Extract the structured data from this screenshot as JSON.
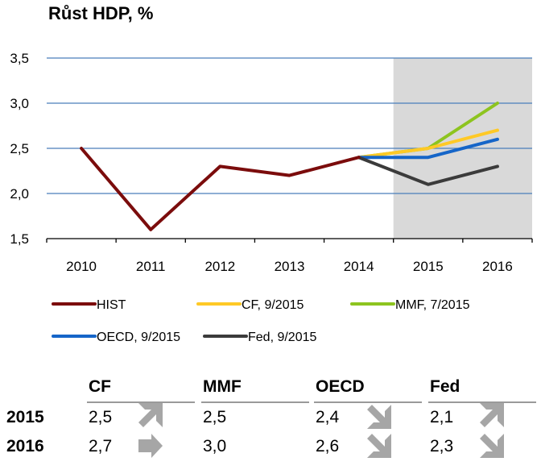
{
  "title": "Růst HDP, %",
  "chart_data": {
    "type": "line",
    "x": [
      "2010",
      "2011",
      "2012",
      "2013",
      "2014",
      "2015",
      "2016"
    ],
    "ylim": [
      1.5,
      3.5
    ],
    "yticks": [
      "1,5",
      "2,0",
      "2,5",
      "3,0",
      "3,5"
    ],
    "ytick_values": [
      1.5,
      2.0,
      2.5,
      3.0,
      3.5
    ],
    "grid": true,
    "forecast_region": [
      "2015",
      "2016"
    ],
    "legend_position": "bottom",
    "series": [
      {
        "name": "HIST",
        "color": "#7b0c0c",
        "x": [
          "2010",
          "2011",
          "2012",
          "2013",
          "2014"
        ],
        "values": [
          2.5,
          1.6,
          2.3,
          2.2,
          2.4
        ]
      },
      {
        "name": "CF, 9/2015",
        "color": "#ffc926",
        "x": [
          "2014",
          "2015",
          "2016"
        ],
        "values": [
          2.4,
          2.5,
          2.7
        ]
      },
      {
        "name": "MMF, 7/2015",
        "color": "#8dc41f",
        "x": [
          "2014",
          "2015",
          "2016"
        ],
        "values": [
          2.4,
          2.5,
          3.0
        ]
      },
      {
        "name": "OECD, 9/2015",
        "color": "#1565c8",
        "x": [
          "2014",
          "2015",
          "2016"
        ],
        "values": [
          2.4,
          2.4,
          2.6
        ]
      },
      {
        "name": "Fed, 9/2015",
        "color": "#3b3b3b",
        "x": [
          "2014",
          "2015",
          "2016"
        ],
        "values": [
          2.4,
          2.1,
          2.3
        ]
      }
    ]
  },
  "table": {
    "headers": [
      "CF",
      "MMF",
      "OECD",
      "Fed"
    ],
    "rows": [
      {
        "year": "2015",
        "values": [
          "2,5",
          "2,5",
          "2,4",
          "2,1"
        ],
        "arrows": [
          "up",
          "none",
          "down",
          "up"
        ]
      },
      {
        "year": "2016",
        "values": [
          "2,7",
          "3,0",
          "2,6",
          "2,3"
        ],
        "arrows": [
          "right",
          "none",
          "down",
          "down"
        ]
      }
    ]
  }
}
